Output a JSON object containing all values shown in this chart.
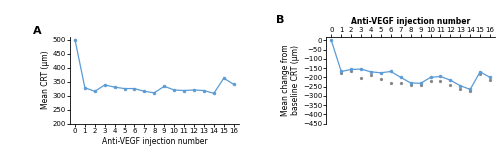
{
  "panel_A": {
    "x": [
      0,
      1,
      2,
      3,
      4,
      5,
      6,
      7,
      8,
      9,
      10,
      11,
      12,
      13,
      14,
      15,
      16
    ],
    "y": [
      500,
      328,
      315,
      338,
      330,
      325,
      325,
      315,
      310,
      333,
      320,
      318,
      320,
      318,
      308,
      362,
      340
    ],
    "ylabel": "Mean CRT (μm)",
    "xlabel": "Anti-VEGF injection number",
    "ylim": [
      200,
      510
    ],
    "yticks": [
      200,
      250,
      300,
      350,
      400,
      450,
      500
    ],
    "xticks": [
      0,
      1,
      2,
      3,
      4,
      5,
      6,
      7,
      8,
      9,
      10,
      11,
      12,
      13,
      14,
      15,
      16
    ],
    "label": "A",
    "line_color": "#5b9bd5",
    "marker_color": "#5b9bd5"
  },
  "panel_B": {
    "x": [
      0,
      1,
      2,
      3,
      4,
      5,
      6,
      7,
      8,
      9,
      10,
      11,
      12,
      13,
      14,
      15,
      16
    ],
    "y": [
      0,
      -168,
      -157,
      -155,
      -170,
      -175,
      -168,
      -200,
      -230,
      -232,
      -200,
      -195,
      -215,
      -245,
      -265,
      -170,
      -200
    ],
    "y_scatter": [
      null,
      -178,
      -168,
      -205,
      -188,
      -208,
      -228,
      -232,
      -242,
      -242,
      -222,
      -222,
      -243,
      -262,
      -272,
      -183,
      -213
    ],
    "ylabel": "Mean change from\nbaseline CRT (μm)",
    "top_xlabel": "Anti-VEGF injection number",
    "ylim": [
      -450,
      20
    ],
    "yticks": [
      0,
      -50,
      -100,
      -150,
      -200,
      -250,
      -300,
      -350,
      -400,
      -450
    ],
    "xticks": [
      0,
      1,
      2,
      3,
      4,
      5,
      6,
      7,
      8,
      9,
      10,
      11,
      12,
      13,
      14,
      15,
      16
    ],
    "label": "B",
    "line_color": "#5b9bd5",
    "marker_color": "#5b9bd5",
    "scatter_color": "#808080"
  }
}
